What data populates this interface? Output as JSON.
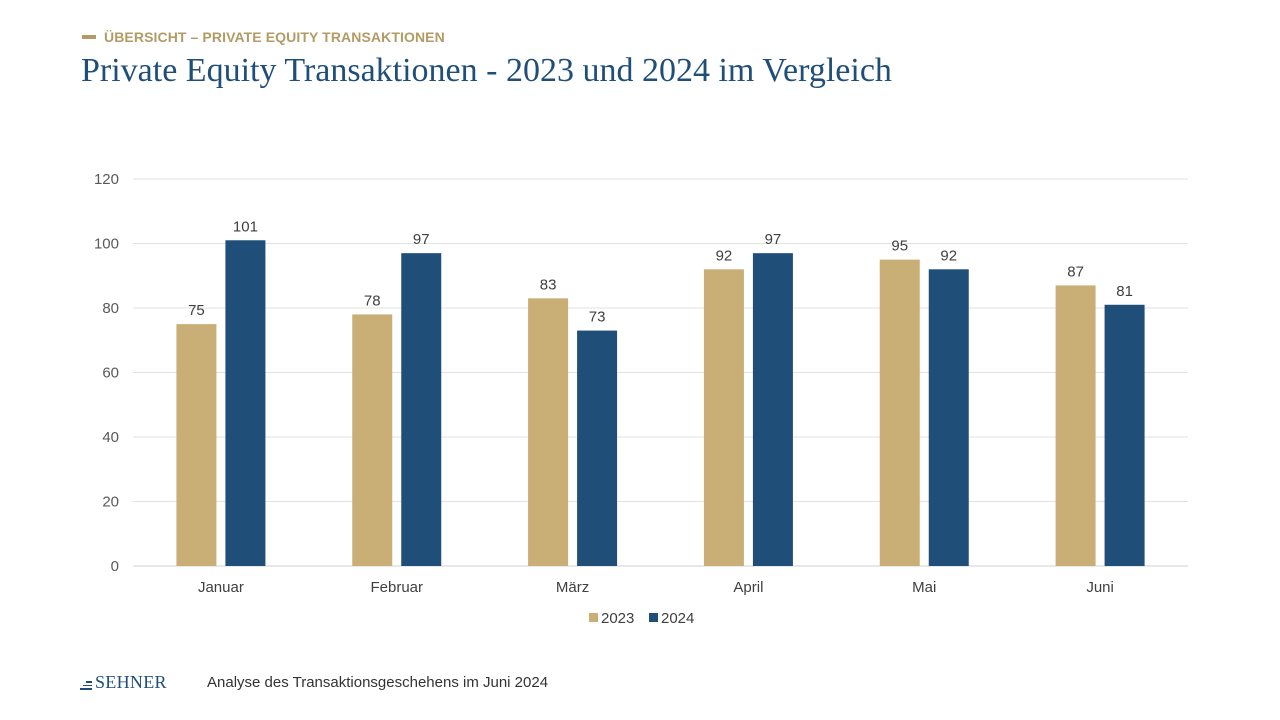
{
  "header": {
    "kicker": "ÜBERSICHT – PRIVATE EQUITY TRANSAKTIONEN",
    "title": "Private Equity Transaktionen - 2023 und 2024 im Vergleich"
  },
  "footer": {
    "logo_text": "SEHNER",
    "caption": "Analyse des Transaktionsgeschehens im Juni 2024"
  },
  "colors": {
    "series_2023": "#c9ae76",
    "series_2024": "#1f4e79",
    "title": "#1f4e79",
    "accent": "#b39b66"
  },
  "chart_data": {
    "type": "bar",
    "categories": [
      "Januar",
      "Februar",
      "März",
      "April",
      "Mai",
      "Juni"
    ],
    "series": [
      {
        "name": "2023",
        "values": [
          75,
          78,
          83,
          92,
          95,
          87
        ]
      },
      {
        "name": "2024",
        "values": [
          101,
          97,
          73,
          97,
          92,
          81
        ]
      }
    ],
    "ylim": [
      0,
      120
    ],
    "yticks": [
      0,
      20,
      40,
      60,
      80,
      100,
      120
    ],
    "grid": true,
    "legend": "bottom",
    "data_labels": true
  }
}
